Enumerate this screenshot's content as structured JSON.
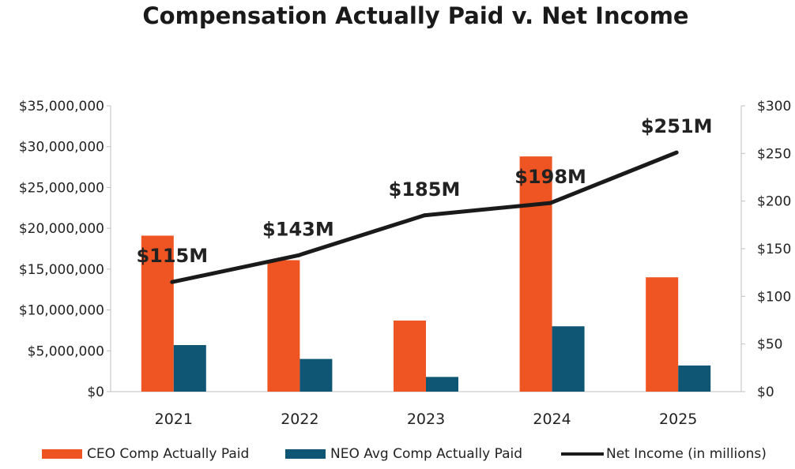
{
  "chart_data": {
    "type": "bar",
    "title": "Compensation Actually Paid v. Net Income",
    "categories": [
      "2021",
      "2022",
      "2023",
      "2024",
      "2025"
    ],
    "series": [
      {
        "name": "CEO Comp Actually Paid",
        "kind": "bar",
        "axis": "left",
        "color": "#EF5423",
        "values": [
          19100000,
          16100000,
          8700000,
          28800000,
          14000000
        ]
      },
      {
        "name": "NEO Avg Comp Actually Paid",
        "kind": "bar",
        "axis": "left",
        "color": "#0F5574",
        "values": [
          5700000,
          4000000,
          1800000,
          8000000,
          3200000
        ]
      },
      {
        "name": "Net Income (in millions)",
        "kind": "line",
        "axis": "right",
        "color": "#1A1A1A",
        "values": [
          115,
          143,
          185,
          198,
          251
        ],
        "labels": [
          "$115M",
          "$143M",
          "$185M",
          "$198M",
          "$251M"
        ]
      }
    ],
    "y_left": {
      "ylim": [
        0,
        35000000
      ],
      "ticks": [
        0,
        5000000,
        10000000,
        15000000,
        20000000,
        25000000,
        30000000,
        35000000
      ],
      "tick_labels": [
        "$0",
        "$5,000,000",
        "$10,000,000",
        "$15,000,000",
        "$20,000,000",
        "$25,000,000",
        "$30,000,000",
        "$35,000,000"
      ]
    },
    "y_right": {
      "ylim": [
        0,
        300
      ],
      "ticks": [
        0,
        50,
        100,
        150,
        200,
        250,
        300
      ],
      "tick_labels": [
        "$0",
        "$50",
        "$100",
        "$150",
        "$200",
        "$250",
        "$300"
      ]
    },
    "grid": false,
    "legend_position": "bottom"
  }
}
